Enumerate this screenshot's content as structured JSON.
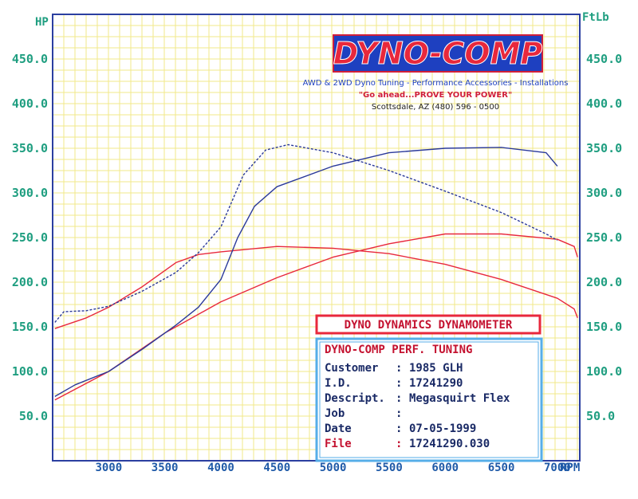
{
  "logo": {
    "name": "DYNO-COMP",
    "services": "AWD & 2WD Dyno Tuning - Performance Accessories - Installations",
    "slogan": "\"Go ahead...PROVE YOUR POWER\"",
    "address": "Scottsdale, AZ (480) 596 - 0500"
  },
  "header_box": {
    "title": "DYNO DYNAMICS DYNAMOMETER"
  },
  "info_box": {
    "title": "DYNO-COMP PERF. TUNING",
    "rows": [
      {
        "label": "Customer",
        "sep": ":",
        "value": "1985 GLH"
      },
      {
        "label": "I.D.",
        "sep": ":",
        "value": "17241290"
      },
      {
        "label": "Descript.",
        "sep": ":",
        "value": "Megasquirt Flex"
      },
      {
        "label": "Job",
        "sep": ":",
        "value": ""
      },
      {
        "label": "Date",
        "sep": ":",
        "value": "07-05-1999"
      },
      {
        "label": "File",
        "sep": ":",
        "value": "17241290.030"
      }
    ]
  },
  "colors": {
    "grid": "#f2e88a",
    "frame": "#2b3fa0",
    "axis_text": "#1f9e80",
    "x_text": "#1f5aa8",
    "red": "#e8283c",
    "blue": "#2b3a9a",
    "header_border": "#e8283c",
    "info_border": "#56aee8"
  },
  "chart_data": {
    "type": "line",
    "x_label": "RPM",
    "y_left_label": "HP",
    "y_right_label": "FtLb",
    "x_ticks": [
      3000,
      3500,
      4000,
      4500,
      5000,
      5500,
      6000,
      6500,
      7000
    ],
    "y_ticks_left": [
      "50.0",
      "100.0",
      "150.0",
      "200.0",
      "250.0",
      "300.0",
      "350.0",
      "400.0",
      "450.0"
    ],
    "y_ticks_right": [
      "50.0",
      "100.0",
      "150.0",
      "200.0",
      "250.0",
      "300.0",
      "350.0",
      "400.0",
      "450.0"
    ],
    "xlim": [
      2500,
      7200
    ],
    "ylim": [
      0,
      500
    ],
    "grid": true,
    "series": [
      {
        "color": "red",
        "dash": "solid",
        "points": [
          [
            2520,
            68
          ],
          [
            3000,
            100
          ],
          [
            3500,
            143
          ],
          [
            4000,
            178
          ],
          [
            4500,
            205
          ],
          [
            5000,
            228
          ],
          [
            5500,
            243
          ],
          [
            6000,
            254
          ],
          [
            6500,
            254
          ],
          [
            7000,
            248
          ],
          [
            7150,
            240
          ],
          [
            7180,
            228
          ]
        ]
      },
      {
        "color": "red",
        "dash": "solid",
        "points": [
          [
            2520,
            148
          ],
          [
            2800,
            160
          ],
          [
            3000,
            172
          ],
          [
            3300,
            195
          ],
          [
            3600,
            222
          ],
          [
            3800,
            231
          ],
          [
            4000,
            234
          ],
          [
            4500,
            240
          ],
          [
            5000,
            238
          ],
          [
            5500,
            232
          ],
          [
            6000,
            220
          ],
          [
            6500,
            203
          ],
          [
            7000,
            182
          ],
          [
            7150,
            170
          ],
          [
            7180,
            160
          ]
        ]
      },
      {
        "color": "blue",
        "dash": "solid",
        "points": [
          [
            2520,
            72
          ],
          [
            2700,
            85
          ],
          [
            3000,
            100
          ],
          [
            3300,
            125
          ],
          [
            3600,
            152
          ],
          [
            3800,
            172
          ],
          [
            4000,
            203
          ],
          [
            4150,
            250
          ],
          [
            4300,
            285
          ],
          [
            4500,
            307
          ],
          [
            5000,
            330
          ],
          [
            5500,
            345
          ],
          [
            6000,
            350
          ],
          [
            6500,
            351
          ],
          [
            6900,
            345
          ],
          [
            7000,
            330
          ]
        ]
      },
      {
        "color": "blue",
        "dash": "dashed",
        "points": [
          [
            2520,
            155
          ],
          [
            2600,
            167
          ],
          [
            2800,
            168
          ],
          [
            3000,
            173
          ],
          [
            3300,
            190
          ],
          [
            3600,
            211
          ],
          [
            3800,
            233
          ],
          [
            4000,
            262
          ],
          [
            4200,
            320
          ],
          [
            4400,
            348
          ],
          [
            4600,
            354
          ],
          [
            5000,
            345
          ],
          [
            5500,
            325
          ],
          [
            6000,
            302
          ],
          [
            6500,
            278
          ],
          [
            6900,
            254
          ],
          [
            7000,
            247
          ]
        ]
      }
    ]
  }
}
